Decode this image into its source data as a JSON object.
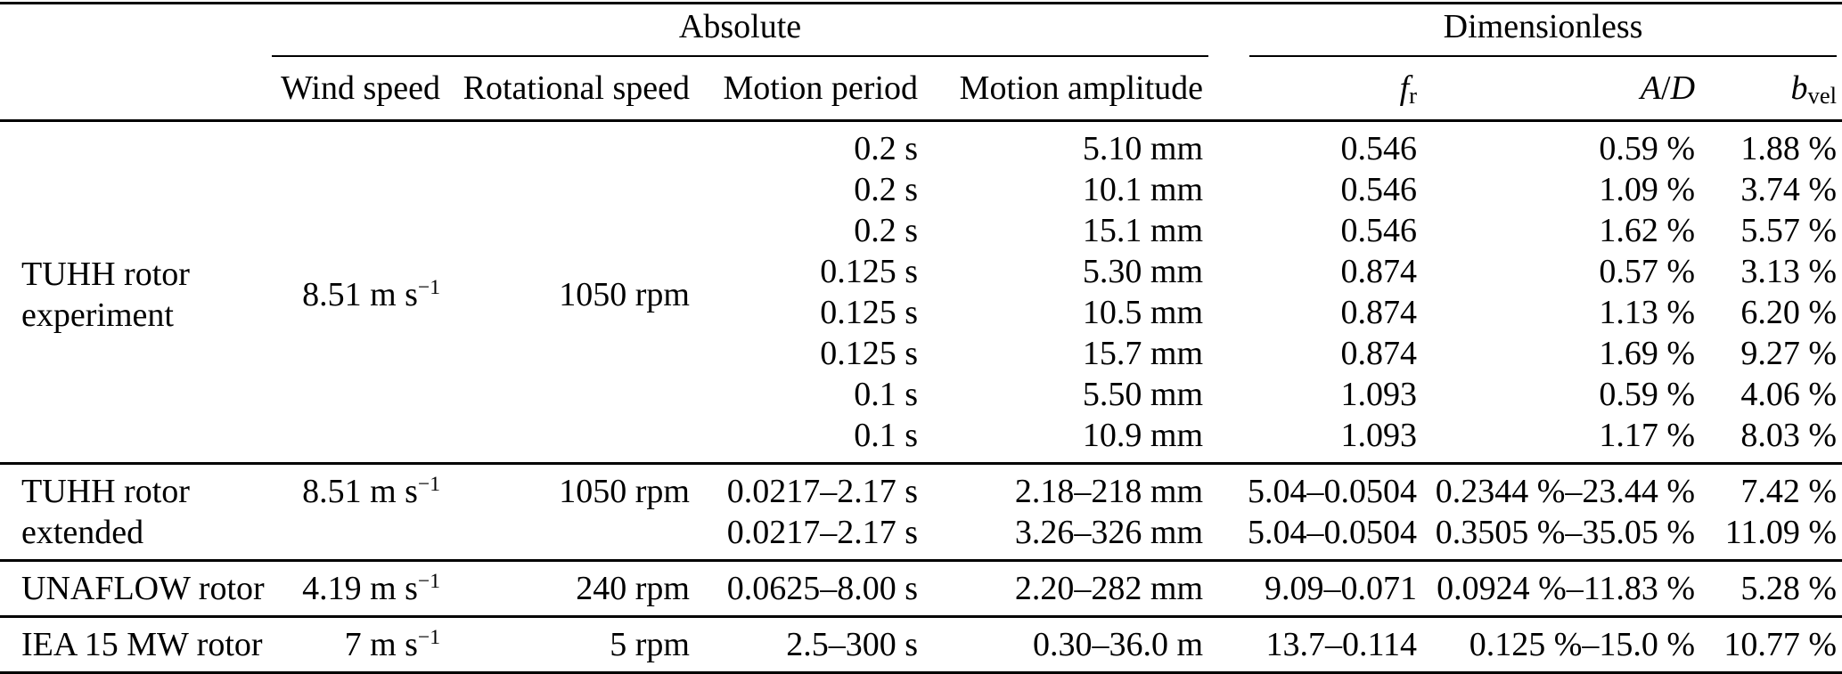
{
  "page": {
    "background_color": "#ffffff",
    "text_color": "#000000",
    "rule_color": "#000000"
  },
  "table": {
    "group_headers": [
      {
        "label": "Absolute"
      },
      {
        "label": "Dimensionless"
      }
    ],
    "column_headers": [
      "Wind speed",
      "Rotational speed",
      "Motion period",
      "Motion amplitude",
      "*f*_{r}",
      "*A*/*D*",
      "*b*_{vel}"
    ],
    "sections": [
      {
        "name": "tuhh-rotor-experiment",
        "label_lines": [
          "TUHH rotor",
          "experiment"
        ],
        "merged": {
          "wind_speed": "8.51 m s^{−1}",
          "rotational_speed": "1050 rpm",
          "valign": "middle"
        },
        "rows": [
          [
            "0.2 s",
            "5.10 mm",
            "0.546",
            "0.59 %",
            "1.88 %"
          ],
          [
            "0.2 s",
            "10.1 mm",
            "0.546",
            "1.09 %",
            "3.74 %"
          ],
          [
            "0.2 s",
            "15.1 mm",
            "0.546",
            "1.62 %",
            "5.57 %"
          ],
          [
            "0.125 s",
            "5.30 mm",
            "0.874",
            "0.57 %",
            "3.13 %"
          ],
          [
            "0.125 s",
            "10.5 mm",
            "0.874",
            "1.13 %",
            "6.20 %"
          ],
          [
            "0.125 s",
            "15.7 mm",
            "0.874",
            "1.69 %",
            "9.27 %"
          ],
          [
            "0.1 s",
            "5.50 mm",
            "1.093",
            "0.59 %",
            "4.06 %"
          ],
          [
            "0.1 s",
            "10.9 mm",
            "1.093",
            "1.17 %",
            "8.03 %"
          ]
        ]
      },
      {
        "name": "tuhh-rotor-extended",
        "label_lines": [
          "TUHH rotor",
          "extended"
        ],
        "merged": {
          "wind_speed": "8.51 m s^{−1}",
          "rotational_speed": "1050 rpm",
          "valign": "top"
        },
        "rows": [
          [
            "0.0217–2.17 s",
            "2.18–218 mm",
            "5.04–0.0504",
            "0.2344 %–23.44 %",
            "7.42 %"
          ],
          [
            "0.0217–2.17 s",
            "3.26–326 mm",
            "5.04–0.0504",
            "0.3505 %–35.05 %",
            "11.09 %"
          ]
        ]
      },
      {
        "name": "unaflow-rotor",
        "label_lines": [
          "UNAFLOW rotor"
        ],
        "merged": {
          "wind_speed": "4.19 m s^{−1}",
          "rotational_speed": "240 rpm",
          "valign": "middle"
        },
        "rows": [
          [
            "0.0625–8.00 s",
            "2.20–282 mm",
            "9.09–0.071",
            "0.0924 %–11.83 %",
            "5.28 %"
          ]
        ]
      },
      {
        "name": "iea-15-mw-rotor",
        "label_lines": [
          "IEA 15 MW rotor"
        ],
        "merged": {
          "wind_speed": "7 m s^{−1}",
          "rotational_speed": "5 rpm",
          "valign": "middle"
        },
        "rows": [
          [
            "2.5–300 s",
            "0.30–36.0 m",
            "13.7–0.114",
            "0.125 %–15.0 %",
            "10.77 %"
          ]
        ]
      }
    ]
  }
}
